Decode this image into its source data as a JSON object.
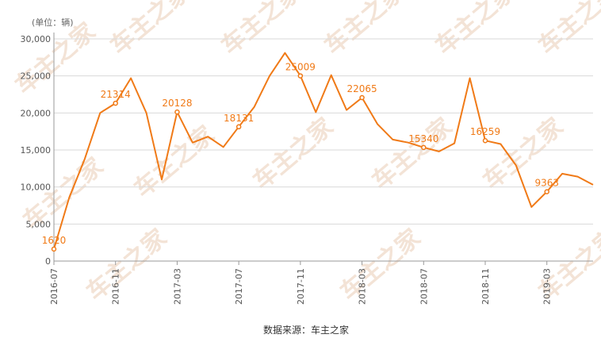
{
  "chart_data": {
    "type": "line",
    "unit_label": "(单位：辆)",
    "source": "数据来源：车主之家",
    "watermark": "车主之家",
    "ylim": [
      0,
      30000
    ],
    "y_ticks": [
      "0",
      "5,000",
      "10,000",
      "15,000",
      "20,000",
      "25,000",
      "30,000"
    ],
    "x_ticks": [
      "2016-07",
      "2016-11",
      "2017-03",
      "2017-07",
      "2017-11",
      "2018-03",
      "2018-07",
      "2018-11",
      "2019-03"
    ],
    "grid": true,
    "legend": "none",
    "line_color": "#f07a17",
    "x": [
      "2016-07",
      "2016-08",
      "2016-09",
      "2016-10",
      "2016-11",
      "2016-12",
      "2017-01",
      "2017-02",
      "2017-03",
      "2017-04",
      "2017-05",
      "2017-06",
      "2017-07",
      "2017-08",
      "2017-09",
      "2017-10",
      "2017-11",
      "2017-12",
      "2018-01",
      "2018-02",
      "2018-03",
      "2018-04",
      "2018-05",
      "2018-06",
      "2018-07",
      "2018-08",
      "2018-09",
      "2018-10",
      "2018-11",
      "2018-12",
      "2019-01",
      "2019-02",
      "2019-03",
      "2019-04",
      "2019-05",
      "2019-06"
    ],
    "values": [
      1620,
      8600,
      13800,
      20000,
      21314,
      24700,
      20000,
      11000,
      20128,
      16000,
      16800,
      15400,
      18131,
      20800,
      25000,
      28100,
      25009,
      20100,
      25100,
      20400,
      22065,
      18500,
      16400,
      16000,
      15340,
      14800,
      15900,
      24700,
      16259,
      15800,
      12900,
      7300,
      9363,
      11800,
      11400,
      10300
    ],
    "labels": [
      {
        "index": 0,
        "text": "1620"
      },
      {
        "index": 4,
        "text": "21314"
      },
      {
        "index": 8,
        "text": "20128"
      },
      {
        "index": 12,
        "text": "18131"
      },
      {
        "index": 16,
        "text": "25009"
      },
      {
        "index": 20,
        "text": "22065"
      },
      {
        "index": 24,
        "text": "15340"
      },
      {
        "index": 28,
        "text": "16259"
      },
      {
        "index": 32,
        "text": "9363"
      }
    ]
  }
}
